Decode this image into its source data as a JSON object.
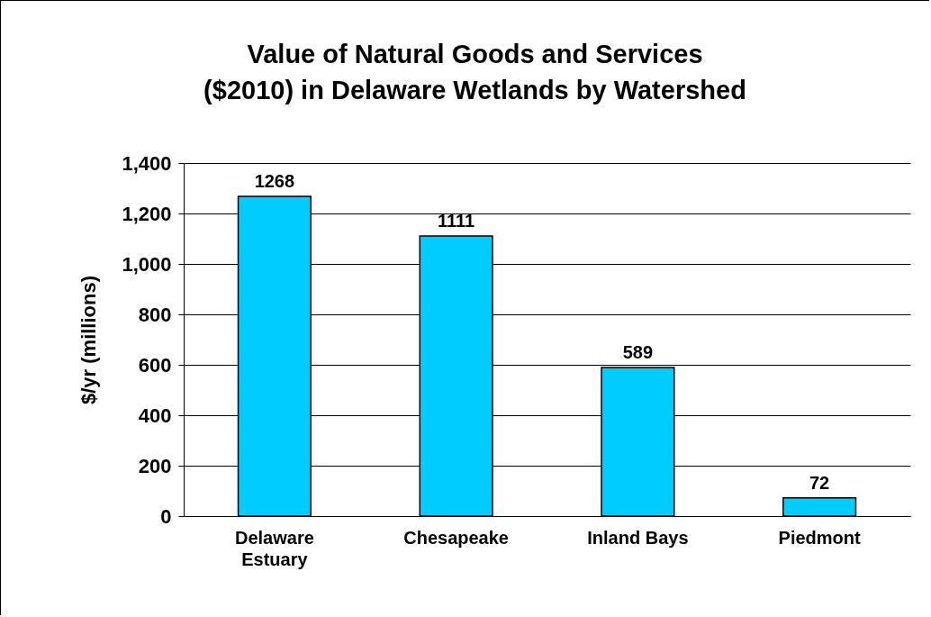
{
  "chart_data": {
    "type": "bar",
    "title": "Value of Natural Goods and Services ($2010) in Delaware Wetlands by Watershed",
    "ylabel": "$/yr (millions)",
    "categories": [
      "Delaware Estuary",
      "Chesapeake",
      "Inland Bays",
      "Piedmont"
    ],
    "values": [
      1268,
      1111,
      589,
      72
    ],
    "color": "#00ccff",
    "ylim": [
      0,
      1400
    ],
    "yticks": [
      {
        "value": 0,
        "label": "0"
      },
      {
        "value": 200,
        "label": "200"
      },
      {
        "value": 400,
        "label": "400"
      },
      {
        "value": 600,
        "label": "600"
      },
      {
        "value": 800,
        "label": "800"
      },
      {
        "value": 1000,
        "label": "1,000"
      },
      {
        "value": 1200,
        "label": "1,200"
      },
      {
        "value": 1400,
        "label": "1,400"
      }
    ],
    "grid": "y",
    "data_labels": true
  }
}
